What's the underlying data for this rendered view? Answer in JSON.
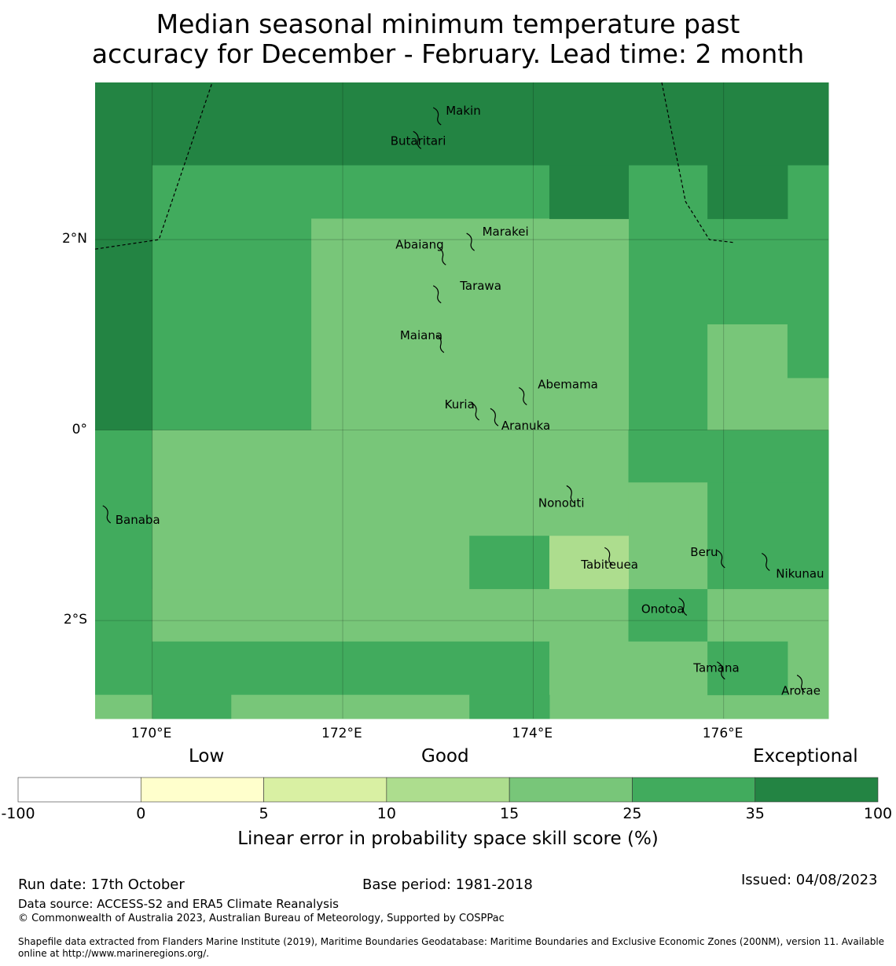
{
  "title": {
    "line1": "Median seasonal minimum temperature past",
    "line2": "accuracy for December - February. Lead time: 2 month"
  },
  "map": {
    "lon_range": [
      169.4,
      177.1
    ],
    "lat_range": [
      -3.03,
      3.65
    ],
    "x_ticks": [
      {
        "lon": 170,
        "label": "170°E"
      },
      {
        "lon": 172,
        "label": "172°E"
      },
      {
        "lon": 174,
        "label": "174°E"
      },
      {
        "lon": 176,
        "label": "176°E"
      }
    ],
    "y_ticks": [
      {
        "lat": 2,
        "label": "2°N"
      },
      {
        "lat": 0,
        "label": "0°"
      },
      {
        "lat": -2,
        "label": "2°S"
      }
    ],
    "grid_cells": [
      {
        "lon0": 169.4,
        "lon1": 170.0,
        "lat0": 0.0,
        "lat1": 3.65,
        "category": "35-100"
      },
      {
        "lon0": 170.0,
        "lon1": 177.1,
        "lat0": 2.78,
        "lat1": 3.65,
        "category": "35-100"
      },
      {
        "lon0": 170.0,
        "lon1": 177.1,
        "lat0": 0.0,
        "lat1": 2.78,
        "category": "25-35"
      },
      {
        "lon0": 171.67,
        "lon1": 175.0,
        "lat0": 0.0,
        "lat1": 2.22,
        "category": "15-25"
      },
      {
        "lon0": 174.17,
        "lon1": 175.0,
        "lat0": 2.22,
        "lat1": 2.78,
        "category": "35-100"
      },
      {
        "lon0": 175.83,
        "lon1": 176.67,
        "lat0": 2.22,
        "lat1": 2.78,
        "category": "35-100"
      },
      {
        "lon0": 175.83,
        "lon1": 177.1,
        "lat0": 0.0,
        "lat1": 1.11,
        "category": "15-25"
      },
      {
        "lon0": 176.67,
        "lon1": 177.1,
        "lat0": 0.55,
        "lat1": 1.11,
        "category": "25-35"
      },
      {
        "lon0": 169.4,
        "lon1": 170.0,
        "lat0": -2.78,
        "lat1": 0.0,
        "category": "25-35"
      },
      {
        "lon0": 169.4,
        "lon1": 170.0,
        "lat0": -3.03,
        "lat1": -2.78,
        "category": "15-25"
      },
      {
        "lon0": 170.0,
        "lon1": 175.0,
        "lat0": -2.22,
        "lat1": 0.0,
        "category": "15-25"
      },
      {
        "lon0": 175.0,
        "lon1": 177.1,
        "lat0": -0.55,
        "lat1": 0.0,
        "category": "25-35"
      },
      {
        "lon0": 175.0,
        "lon1": 175.83,
        "lat0": -1.67,
        "lat1": -0.55,
        "category": "15-25"
      },
      {
        "lon0": 175.83,
        "lon1": 177.1,
        "lat0": -1.67,
        "lat1": -0.55,
        "category": "25-35"
      },
      {
        "lon0": 173.33,
        "lon1": 174.17,
        "lat0": -1.67,
        "lat1": -1.11,
        "category": "25-35"
      },
      {
        "lon0": 174.17,
        "lon1": 175.0,
        "lat0": -1.67,
        "lat1": -1.11,
        "category": "10-15"
      },
      {
        "lon0": 170.0,
        "lon1": 175.0,
        "lat0": -2.22,
        "lat1": -1.67,
        "category": "15-25"
      },
      {
        "lon0": 175.0,
        "lon1": 175.83,
        "lat0": -2.22,
        "lat1": -1.67,
        "category": "25-35"
      },
      {
        "lon0": 175.83,
        "lon1": 177.1,
        "lat0": -2.22,
        "lat1": -1.67,
        "category": "15-25"
      },
      {
        "lon0": 170.0,
        "lon1": 174.17,
        "lat0": -2.78,
        "lat1": -2.22,
        "category": "25-35"
      },
      {
        "lon0": 174.17,
        "lon1": 177.1,
        "lat0": -3.03,
        "lat1": -2.22,
        "category": "15-25"
      },
      {
        "lon0": 175.83,
        "lon1": 176.67,
        "lat0": -2.78,
        "lat1": -2.22,
        "category": "25-35"
      },
      {
        "lon0": 170.0,
        "lon1": 170.83,
        "lat0": -3.03,
        "lat1": -2.78,
        "category": "25-35"
      },
      {
        "lon0": 170.83,
        "lon1": 173.33,
        "lat0": -3.03,
        "lat1": -2.78,
        "category": "15-25"
      },
      {
        "lon0": 173.33,
        "lon1": 174.17,
        "lat0": -3.03,
        "lat1": -2.78,
        "category": "25-35"
      }
    ],
    "boundaries": [
      [
        [
          169.4,
          1.9
        ],
        [
          170.07,
          2.0
        ],
        [
          170.63,
          3.65
        ]
      ],
      [
        [
          175.35,
          3.65
        ],
        [
          175.6,
          2.4
        ],
        [
          175.85,
          2.0
        ],
        [
          176.1,
          1.97
        ]
      ]
    ],
    "islands": [
      {
        "name": "Makin",
        "lon": 173.0,
        "lat": 3.32
      },
      {
        "name": "Butaritari",
        "lon": 172.79,
        "lat": 3.07
      },
      {
        "name": "Marakei",
        "lon": 173.35,
        "lat": 2.0
      },
      {
        "name": "Abaiang",
        "lon": 173.05,
        "lat": 1.85
      },
      {
        "name": "Tarawa",
        "lon": 173.0,
        "lat": 1.45
      },
      {
        "name": "Maiana",
        "lon": 173.03,
        "lat": 0.93
      },
      {
        "name": "Abemama",
        "lon": 173.9,
        "lat": 0.38
      },
      {
        "name": "Kuria",
        "lon": 173.4,
        "lat": 0.22
      },
      {
        "name": "Aranuka",
        "lon": 173.6,
        "lat": 0.16
      },
      {
        "name": "Nonouti",
        "lon": 174.4,
        "lat": -0.65
      },
      {
        "name": "Banaba",
        "lon": 169.53,
        "lat": -0.86
      },
      {
        "name": "Tabiteuea",
        "lon": 174.8,
        "lat": -1.3
      },
      {
        "name": "Beru",
        "lon": 175.98,
        "lat": -1.33
      },
      {
        "name": "Nikunau",
        "lon": 176.45,
        "lat": -1.36
      },
      {
        "name": "Onotoa",
        "lon": 175.58,
        "lat": -1.83
      },
      {
        "name": "Tamana",
        "lon": 175.98,
        "lat": -2.5
      },
      {
        "name": "Arorae",
        "lon": 176.82,
        "lat": -2.64
      }
    ]
  },
  "colorbar": {
    "categories": {
      "low": "Low",
      "good": "Good",
      "exceptional": "Exceptional"
    },
    "bins": [
      {
        "range": "-100-0",
        "color": "#ffffff"
      },
      {
        "range": "0-5",
        "color": "#ffffcc"
      },
      {
        "range": "5-10",
        "color": "#d9f0a3"
      },
      {
        "range": "10-15",
        "color": "#addd8e"
      },
      {
        "range": "15-25",
        "color": "#78c679"
      },
      {
        "range": "25-35",
        "color": "#41ab5d"
      },
      {
        "range": "35-100",
        "color": "#238443"
      }
    ],
    "ticks": [
      "-100",
      "0",
      "5",
      "10",
      "15",
      "25",
      "35",
      "100"
    ],
    "label": "Linear error in probability space skill score (%)"
  },
  "footer": {
    "run_date": "Run date: 17th October",
    "base_period": "Base period: 1981-2018",
    "issued": "Issued: 04/08/2023",
    "data_source": "Data source: ACCESS-S2 and ERA5 Climate Reanalysis",
    "copyright": "© Commonwealth of Australia 2023, Australian Bureau of Meteorology, Supported by COSPPac",
    "shapefile_line1": "Shapefile data extracted from Flanders Marine Institute (2019), Maritime Boundaries Geodatabase: Maritime Boundaries and Exclusive Economic Zones (200NM), version 11. Available",
    "shapefile_line2": "online at http://www.marineregions.org/."
  }
}
